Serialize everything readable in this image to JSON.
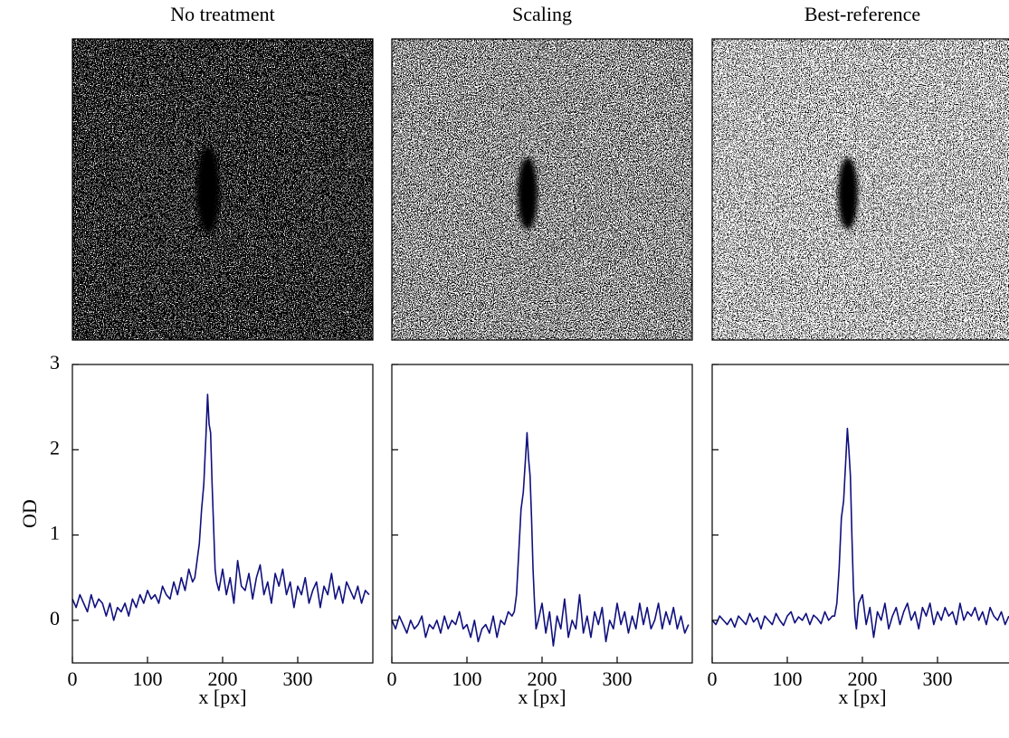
{
  "chart_data": [
    {
      "type": "line",
      "title": "No treatment",
      "x_label": "x [px]",
      "y_label": "OD",
      "show_ytick_labels": true,
      "xlim": [
        0,
        400
      ],
      "ylim": [
        -0.5,
        3
      ],
      "xticks": [
        0,
        100,
        200,
        300
      ],
      "yticks": [
        0,
        1,
        2,
        3
      ],
      "grid": false,
      "series": [
        {
          "color": "#10107f",
          "x": [
            0,
            5,
            10,
            15,
            20,
            25,
            30,
            35,
            40,
            45,
            50,
            55,
            60,
            65,
            70,
            75,
            80,
            85,
            90,
            95,
            100,
            105,
            110,
            115,
            120,
            125,
            130,
            135,
            140,
            145,
            150,
            155,
            160,
            163,
            166,
            169,
            172,
            175,
            178,
            180,
            182,
            184,
            186,
            188,
            190,
            192,
            195,
            200,
            205,
            210,
            215,
            220,
            225,
            230,
            235,
            240,
            245,
            250,
            255,
            260,
            265,
            270,
            275,
            280,
            285,
            290,
            295,
            300,
            305,
            310,
            315,
            320,
            325,
            330,
            335,
            340,
            345,
            350,
            355,
            360,
            365,
            370,
            375,
            380,
            385,
            390,
            395
          ],
          "values": [
            0.25,
            0.15,
            0.3,
            0.2,
            0.1,
            0.3,
            0.15,
            0.25,
            0.2,
            0.05,
            0.2,
            0.0,
            0.15,
            0.1,
            0.2,
            0.05,
            0.25,
            0.15,
            0.3,
            0.2,
            0.35,
            0.25,
            0.3,
            0.2,
            0.4,
            0.3,
            0.25,
            0.45,
            0.3,
            0.5,
            0.35,
            0.6,
            0.45,
            0.5,
            0.7,
            0.9,
            1.3,
            1.6,
            2.2,
            2.65,
            2.3,
            2.2,
            1.6,
            1.1,
            0.6,
            0.45,
            0.35,
            0.6,
            0.3,
            0.5,
            0.2,
            0.7,
            0.4,
            0.35,
            0.55,
            0.25,
            0.5,
            0.65,
            0.3,
            0.45,
            0.2,
            0.55,
            0.4,
            0.6,
            0.3,
            0.45,
            0.15,
            0.4,
            0.3,
            0.5,
            0.2,
            0.35,
            0.45,
            0.15,
            0.4,
            0.3,
            0.55,
            0.25,
            0.4,
            0.2,
            0.45,
            0.35,
            0.25,
            0.4,
            0.2,
            0.35,
            0.3
          ]
        }
      ]
    },
    {
      "type": "line",
      "title": "Scaling",
      "x_label": "x [px]",
      "show_ytick_labels": false,
      "xlim": [
        0,
        400
      ],
      "ylim": [
        -0.5,
        3
      ],
      "xticks": [
        0,
        100,
        200,
        300
      ],
      "yticks": [
        0,
        1,
        2,
        3
      ],
      "grid": false,
      "series": [
        {
          "color": "#10107f",
          "x": [
            0,
            5,
            10,
            15,
            20,
            25,
            30,
            35,
            40,
            45,
            50,
            55,
            60,
            65,
            70,
            75,
            80,
            85,
            90,
            95,
            100,
            105,
            110,
            115,
            120,
            125,
            130,
            135,
            140,
            145,
            150,
            155,
            160,
            163,
            166,
            169,
            172,
            175,
            178,
            180,
            182,
            184,
            186,
            188,
            190,
            192,
            195,
            200,
            205,
            210,
            215,
            220,
            225,
            230,
            235,
            240,
            245,
            250,
            255,
            260,
            265,
            270,
            275,
            280,
            285,
            290,
            295,
            300,
            305,
            310,
            315,
            320,
            325,
            330,
            335,
            340,
            345,
            350,
            355,
            360,
            365,
            370,
            375,
            380,
            385,
            390,
            395
          ],
          "values": [
            0.0,
            -0.1,
            0.05,
            -0.05,
            -0.15,
            0.0,
            -0.1,
            -0.05,
            0.05,
            -0.2,
            -0.05,
            -0.1,
            0.0,
            -0.15,
            0.05,
            -0.1,
            0.0,
            -0.05,
            0.1,
            -0.1,
            -0.05,
            -0.2,
            0.0,
            -0.25,
            -0.1,
            -0.05,
            -0.15,
            0.05,
            -0.2,
            0.0,
            -0.05,
            0.1,
            0.05,
            0.1,
            0.3,
            0.8,
            1.3,
            1.5,
            1.9,
            2.2,
            1.9,
            1.7,
            1.2,
            0.6,
            0.2,
            -0.1,
            0.0,
            0.2,
            -0.15,
            0.1,
            -0.3,
            0.05,
            -0.1,
            0.25,
            -0.2,
            0.0,
            -0.1,
            0.3,
            -0.15,
            0.05,
            -0.2,
            0.1,
            -0.05,
            0.15,
            -0.25,
            0.0,
            -0.1,
            0.2,
            -0.05,
            0.1,
            -0.15,
            0.05,
            -0.1,
            0.2,
            -0.05,
            0.15,
            -0.1,
            0.0,
            0.2,
            -0.1,
            0.1,
            -0.05,
            0.15,
            -0.1,
            0.05,
            -0.15,
            -0.05
          ]
        }
      ]
    },
    {
      "type": "line",
      "title": "Best-reference",
      "x_label": "x [px]",
      "show_ytick_labels": false,
      "xlim": [
        0,
        400
      ],
      "ylim": [
        -0.5,
        3
      ],
      "xticks": [
        0,
        100,
        200,
        300
      ],
      "yticks": [
        0,
        1,
        2,
        3
      ],
      "grid": false,
      "series": [
        {
          "color": "#10107f",
          "x": [
            0,
            5,
            10,
            15,
            20,
            25,
            30,
            35,
            40,
            45,
            50,
            55,
            60,
            65,
            70,
            75,
            80,
            85,
            90,
            95,
            100,
            105,
            110,
            115,
            120,
            125,
            130,
            135,
            140,
            145,
            150,
            155,
            160,
            163,
            166,
            169,
            172,
            175,
            178,
            180,
            182,
            184,
            186,
            188,
            190,
            192,
            195,
            200,
            205,
            210,
            215,
            220,
            225,
            230,
            235,
            240,
            245,
            250,
            255,
            260,
            265,
            270,
            275,
            280,
            285,
            290,
            295,
            300,
            305,
            310,
            315,
            320,
            325,
            330,
            335,
            340,
            345,
            350,
            355,
            360,
            365,
            370,
            375,
            380,
            385,
            390,
            395
          ],
          "values": [
            0.0,
            -0.05,
            0.05,
            0.0,
            -0.05,
            0.02,
            -0.08,
            0.05,
            0.0,
            -0.05,
            0.08,
            -0.02,
            0.03,
            -0.1,
            0.05,
            0.0,
            -0.05,
            0.08,
            0.0,
            -0.06,
            0.05,
            0.1,
            -0.03,
            0.04,
            0.0,
            0.08,
            -0.05,
            0.06,
            0.02,
            -0.04,
            0.1,
            0.0,
            0.05,
            0.05,
            0.2,
            0.6,
            1.2,
            1.4,
            1.9,
            2.25,
            2.0,
            1.7,
            1.0,
            0.4,
            0.05,
            -0.1,
            0.2,
            0.3,
            -0.05,
            0.15,
            -0.2,
            0.1,
            0.0,
            0.2,
            -0.1,
            0.05,
            0.15,
            -0.05,
            0.1,
            0.2,
            0.0,
            0.1,
            -0.1,
            0.15,
            0.05,
            0.2,
            -0.05,
            0.1,
            0.0,
            0.15,
            0.05,
            0.1,
            -0.05,
            0.2,
            0.0,
            0.1,
            0.05,
            0.15,
            0.0,
            0.1,
            -0.05,
            0.15,
            0.05,
            0.0,
            0.1,
            -0.05,
            0.05
          ]
        }
      ]
    }
  ]
}
